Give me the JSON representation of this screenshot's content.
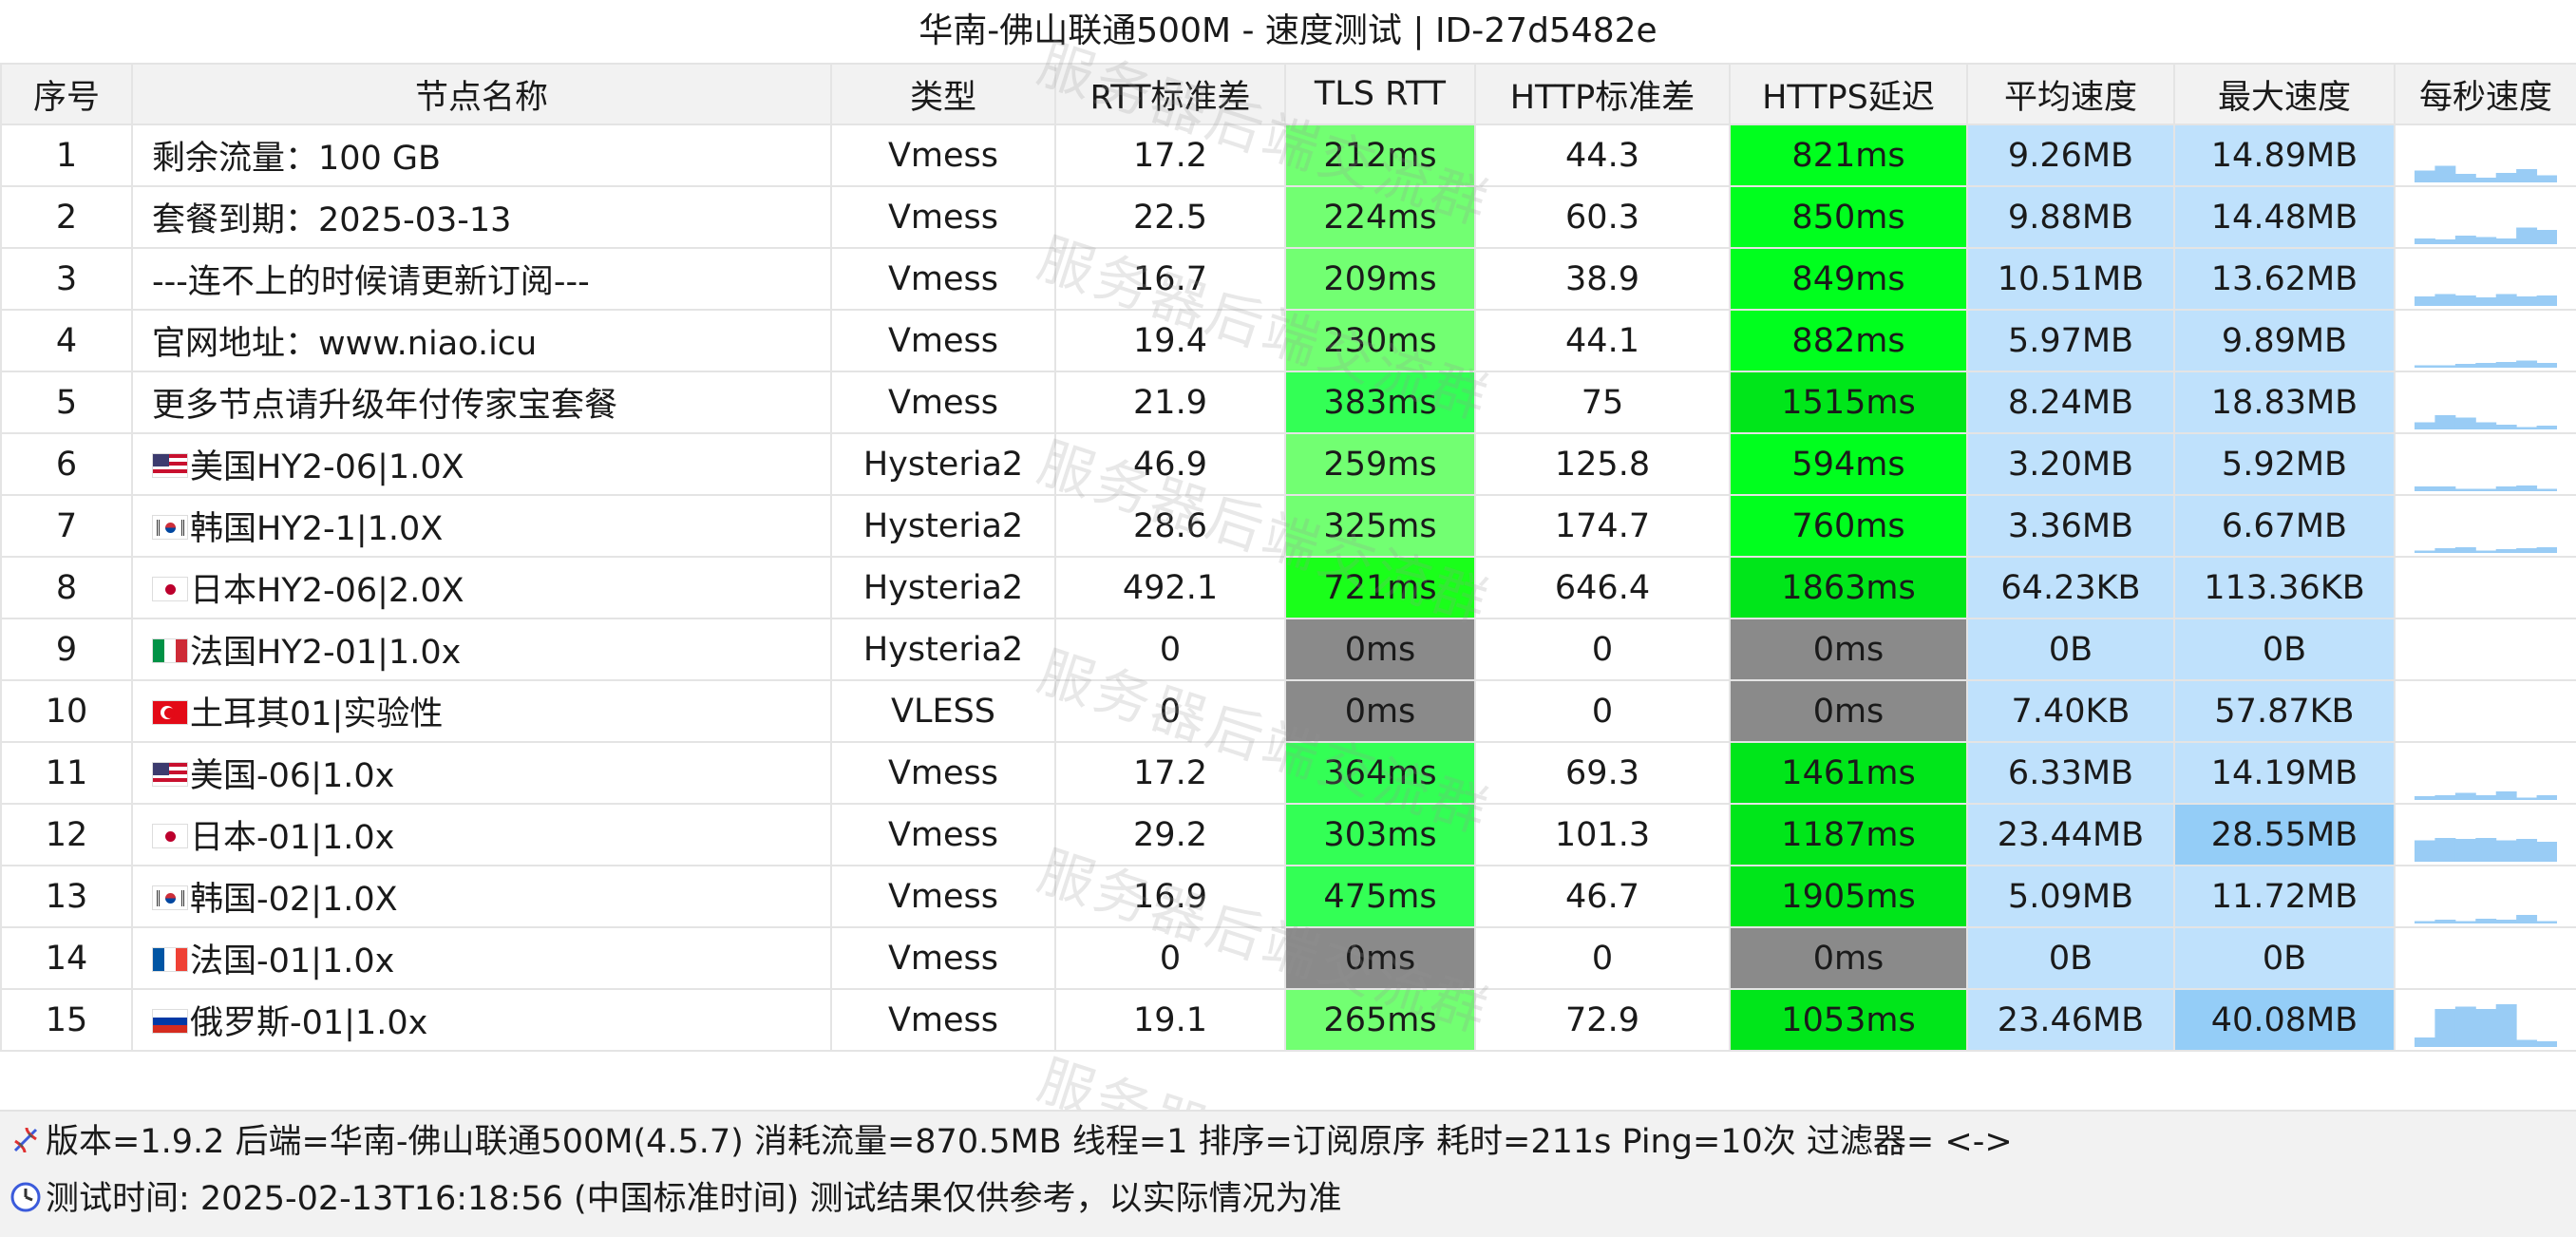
{
  "title": "华南-佛山联通500M - 速度测试 | ID-27d5482e",
  "columns": [
    "序号",
    "节点名称",
    "类型",
    "RTT标准差",
    "TLS RTT",
    "HTTP标准差",
    "HTTPS延迟",
    "平均速度",
    "最大速度",
    "每秒速度"
  ],
  "colors": {
    "tls_light": "#72ff72",
    "tls_mid": "#33ff55",
    "tls_strong": "#1aff1a",
    "https_strong": "#00e61a",
    "https_bright": "#00ff1e",
    "fail": "#8a8a8a",
    "speed_bg": "#bfe1fc",
    "speed_high": "#94cdf7"
  },
  "rows": [
    {
      "idx": "1",
      "flag": "",
      "name": "剩余流量：100 GB",
      "type": "Vmess",
      "rtt_sd": "17.2",
      "tls": "212ms",
      "tls_level": "light",
      "http_sd": "44.3",
      "https": "821ms",
      "https_level": "bright",
      "avg": "9.26MB",
      "max": "14.89MB",
      "max_level": "normal",
      "spark": [
        0.25,
        0.35,
        0.18,
        0.1,
        0.2,
        0.28,
        0.15
      ]
    },
    {
      "idx": "2",
      "flag": "",
      "name": "套餐到期：2025-03-13",
      "type": "Vmess",
      "rtt_sd": "22.5",
      "tls": "224ms",
      "tls_level": "light",
      "http_sd": "60.3",
      "https": "850ms",
      "https_level": "bright",
      "avg": "9.88MB",
      "max": "14.48MB",
      "max_level": "normal",
      "spark": [
        0.12,
        0.1,
        0.18,
        0.15,
        0.12,
        0.35,
        0.3
      ]
    },
    {
      "idx": "3",
      "flag": "",
      "name": "---连不上的时候请更新订阅---",
      "type": "Vmess",
      "rtt_sd": "16.7",
      "tls": "209ms",
      "tls_level": "light",
      "http_sd": "38.9",
      "https": "849ms",
      "https_level": "bright",
      "avg": "10.51MB",
      "max": "13.62MB",
      "max_level": "normal",
      "spark": [
        0.2,
        0.25,
        0.22,
        0.18,
        0.25,
        0.2,
        0.22
      ]
    },
    {
      "idx": "4",
      "flag": "",
      "name": "官网地址：www.niao.icu",
      "type": "Vmess",
      "rtt_sd": "19.4",
      "tls": "230ms",
      "tls_level": "light",
      "http_sd": "44.1",
      "https": "882ms",
      "https_level": "bright",
      "avg": "5.97MB",
      "max": "9.89MB",
      "max_level": "normal",
      "spark": [
        0.05,
        0.05,
        0.08,
        0.1,
        0.12,
        0.15,
        0.1
      ]
    },
    {
      "idx": "5",
      "flag": "",
      "name": "更多节点请升级年付传家宝套餐",
      "type": "Vmess",
      "rtt_sd": "21.9",
      "tls": "383ms",
      "tls_level": "mid",
      "http_sd": "75",
      "https": "1515ms",
      "https_level": "strong",
      "avg": "8.24MB",
      "max": "18.83MB",
      "max_level": "normal",
      "spark": [
        0.15,
        0.3,
        0.25,
        0.15,
        0.1,
        0.05,
        0.08
      ]
    },
    {
      "idx": "6",
      "flag": "us",
      "name": "美国HY2-06|1.0X",
      "type": "Hysteria2",
      "rtt_sd": "46.9",
      "tls": "259ms",
      "tls_level": "light",
      "http_sd": "125.8",
      "https": "594ms",
      "https_level": "bright",
      "avg": "3.20MB",
      "max": "5.92MB",
      "max_level": "normal",
      "spark": [
        0.1,
        0.1,
        0.05,
        0.05,
        0.1,
        0.12,
        0.05
      ]
    },
    {
      "idx": "7",
      "flag": "kr",
      "name": "韩国HY2-1|1.0X",
      "type": "Hysteria2",
      "rtt_sd": "28.6",
      "tls": "325ms",
      "tls_level": "light",
      "http_sd": "174.7",
      "https": "760ms",
      "https_level": "bright",
      "avg": "3.36MB",
      "max": "6.67MB",
      "max_level": "normal",
      "spark": [
        0.05,
        0.1,
        0.12,
        0.05,
        0.08,
        0.1,
        0.12
      ]
    },
    {
      "idx": "8",
      "flag": "jp",
      "name": "日本HY2-06|2.0X",
      "type": "Hysteria2",
      "rtt_sd": "492.1",
      "tls": "721ms",
      "tls_level": "strong",
      "http_sd": "646.4",
      "https": "1863ms",
      "https_level": "strong",
      "avg": "64.23KB",
      "max": "113.36KB",
      "max_level": "normal",
      "spark": []
    },
    {
      "idx": "9",
      "flag": "it",
      "name": "法国HY2-01|1.0x",
      "type": "Hysteria2",
      "rtt_sd": "0",
      "tls": "0ms",
      "tls_level": "fail",
      "http_sd": "0",
      "https": "0ms",
      "https_level": "fail",
      "avg": "0B",
      "max": "0B",
      "max_level": "normal",
      "spark": []
    },
    {
      "idx": "10",
      "flag": "tr",
      "name": "土耳其01|实验性",
      "type": "VLESS",
      "rtt_sd": "0",
      "tls": "0ms",
      "tls_level": "fail",
      "http_sd": "0",
      "https": "0ms",
      "https_level": "fail",
      "avg": "7.40KB",
      "max": "57.87KB",
      "max_level": "normal",
      "spark": []
    },
    {
      "idx": "11",
      "flag": "us",
      "name": "美国-06|1.0x",
      "type": "Vmess",
      "rtt_sd": "17.2",
      "tls": "364ms",
      "tls_level": "mid",
      "http_sd": "69.3",
      "https": "1461ms",
      "https_level": "strong",
      "avg": "6.33MB",
      "max": "14.19MB",
      "max_level": "normal",
      "spark": [
        0.08,
        0.1,
        0.15,
        0.1,
        0.18,
        0.05,
        0.1
      ]
    },
    {
      "idx": "12",
      "flag": "jp",
      "name": "日本-01|1.0x",
      "type": "Vmess",
      "rtt_sd": "29.2",
      "tls": "303ms",
      "tls_level": "mid",
      "http_sd": "101.3",
      "https": "1187ms",
      "https_level": "strong",
      "avg": "23.44MB",
      "max": "28.55MB",
      "max_level": "high",
      "spark": [
        0.45,
        0.5,
        0.48,
        0.5,
        0.45,
        0.48,
        0.42
      ]
    },
    {
      "idx": "13",
      "flag": "kr",
      "name": "韩国-02|1.0X",
      "type": "Vmess",
      "rtt_sd": "16.9",
      "tls": "475ms",
      "tls_level": "mid",
      "http_sd": "46.7",
      "https": "1905ms",
      "https_level": "strong",
      "avg": "5.09MB",
      "max": "11.72MB",
      "max_level": "normal",
      "spark": [
        0.05,
        0.08,
        0.05,
        0.1,
        0.08,
        0.18,
        0.05
      ]
    },
    {
      "idx": "14",
      "flag": "fr",
      "name": "法国-01|1.0x",
      "type": "Vmess",
      "rtt_sd": "0",
      "tls": "0ms",
      "tls_level": "fail",
      "http_sd": "0",
      "https": "0ms",
      "https_level": "fail",
      "avg": "0B",
      "max": "0B",
      "max_level": "normal",
      "spark": []
    },
    {
      "idx": "15",
      "flag": "ru",
      "name": "俄罗斯-01|1.0x",
      "type": "Vmess",
      "rtt_sd": "19.1",
      "tls": "265ms",
      "tls_level": "light",
      "http_sd": "72.9",
      "https": "1053ms",
      "https_level": "strong",
      "avg": "23.46MB",
      "max": "40.08MB",
      "max_level": "high",
      "spark": [
        0.2,
        0.8,
        0.85,
        0.8,
        0.9,
        0.15,
        0.12
      ]
    }
  ],
  "watermark": "服务器后端交流群",
  "footer": {
    "icon_line1": "dna-icon",
    "icon_line2": "clock-icon",
    "line1": "版本=1.9.2  后端=华南-佛山联通500M(4.5.7) 消耗流量=870.5MB  线程=1  排序=订阅原序  耗时=211s  Ping=10次  过滤器= <->",
    "line2": "测试时间: 2025-02-13T16:18:56 (中国标准时间)  测试结果仅供参考，以实际情况为准"
  }
}
